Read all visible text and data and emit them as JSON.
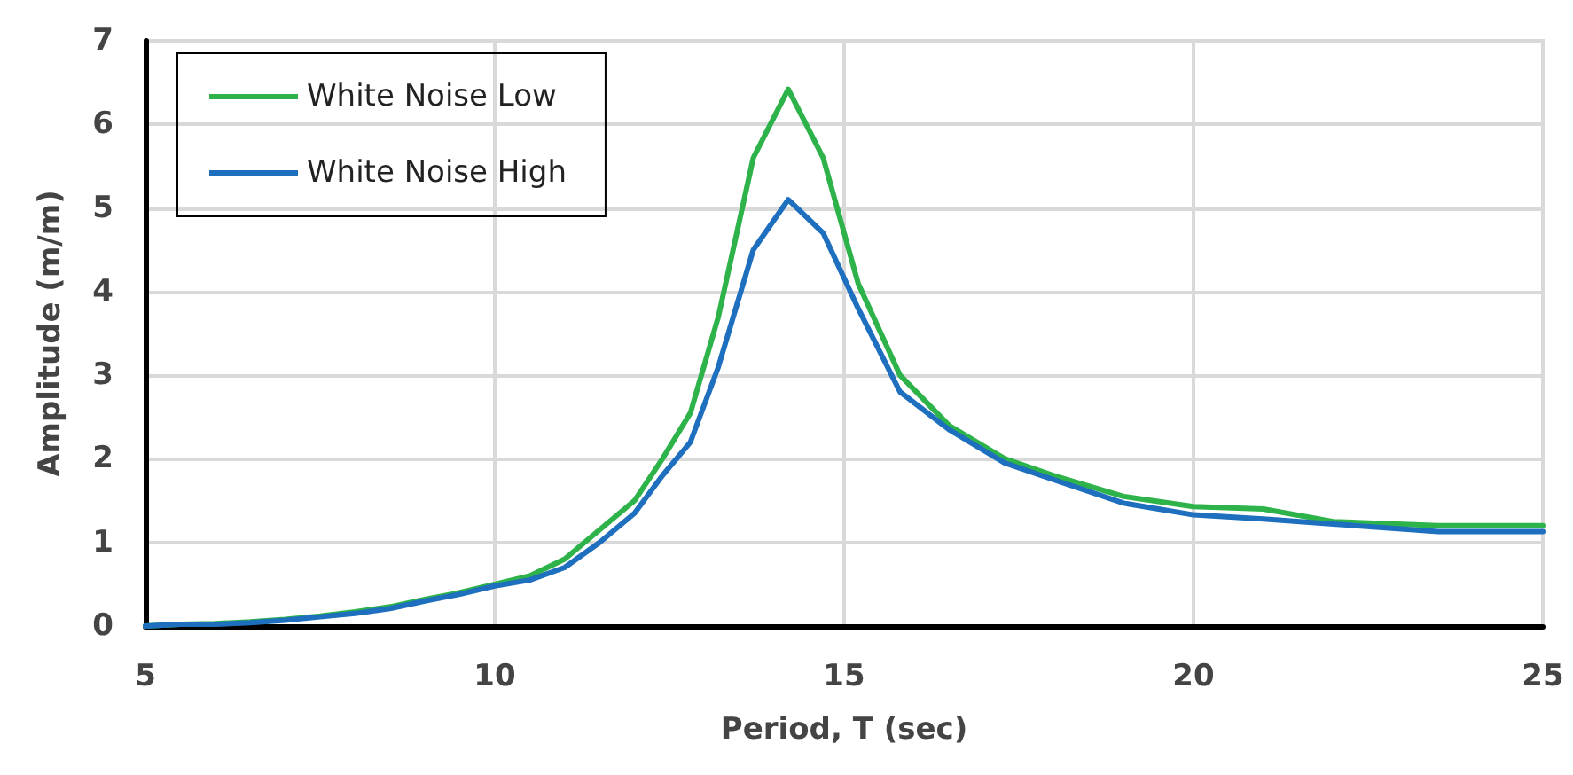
{
  "chart_data": {
    "type": "line",
    "xlabel": "Period, T (sec)",
    "ylabel": "Amplitude (m/m)",
    "x": [
      5,
      5.5,
      6,
      6.5,
      7,
      7.5,
      8,
      8.5,
      9,
      9.5,
      10,
      10.5,
      11,
      11.5,
      12,
      12.4,
      12.8,
      13.2,
      13.7,
      14.2,
      14.7,
      15.2,
      15.8,
      16.5,
      17.3,
      18,
      19,
      20,
      21,
      22,
      23.5,
      25
    ],
    "series": [
      {
        "name": "White Noise Low",
        "color": "#2db34a",
        "values": [
          0,
          0.02,
          0.03,
          0.05,
          0.08,
          0.12,
          0.17,
          0.23,
          0.32,
          0.4,
          0.5,
          0.6,
          0.8,
          1.15,
          1.5,
          2.0,
          2.55,
          3.7,
          5.6,
          6.42,
          5.6,
          4.1,
          3.0,
          2.4,
          2.0,
          1.8,
          1.55,
          1.43,
          1.4,
          1.25,
          1.2,
          1.2
        ]
      },
      {
        "name": "White Noise High",
        "color": "#1f6fbf",
        "values": [
          0,
          0.02,
          0.02,
          0.04,
          0.07,
          0.11,
          0.15,
          0.21,
          0.3,
          0.38,
          0.48,
          0.55,
          0.7,
          1.0,
          1.35,
          1.8,
          2.2,
          3.1,
          4.5,
          5.1,
          4.7,
          3.8,
          2.8,
          2.35,
          1.95,
          1.75,
          1.47,
          1.33,
          1.28,
          1.22,
          1.13,
          1.13
        ]
      }
    ],
    "xlim": [
      5,
      25
    ],
    "xticks": [
      5,
      10,
      15,
      20,
      25
    ],
    "ylim": [
      0,
      7
    ],
    "yticks": [
      0,
      1,
      2,
      3,
      4,
      5,
      6,
      7
    ],
    "grid": true,
    "legend": "top left",
    "marker": "none",
    "line_style": "solid"
  }
}
